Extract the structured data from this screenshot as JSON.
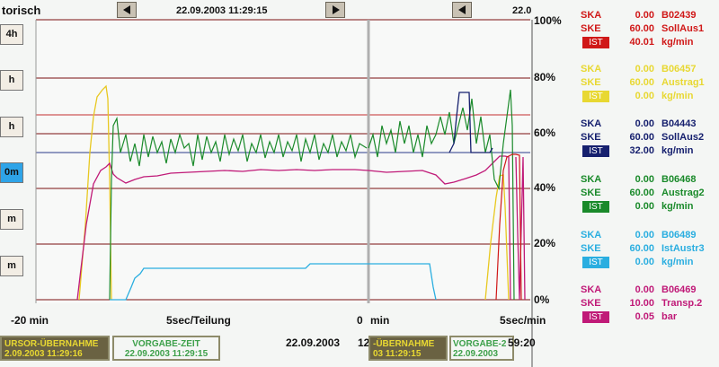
{
  "window": {
    "title": "torisch"
  },
  "nav": {
    "left_time": "22.09.2003  11:29:15",
    "right_time": "22.0"
  },
  "zoom_buttons": [
    "4h",
    "h",
    "h",
    "0m",
    "m",
    "m"
  ],
  "zoom_active_index": 3,
  "y_axis": [
    "100%",
    "80%",
    "60%",
    "40%",
    "20%",
    "0%"
  ],
  "x_axis": {
    "left_start": "-20 min",
    "left_mid": "5sec/Teilung",
    "left_end": "0",
    "right_start": "min",
    "right_end": "5sec/min"
  },
  "footer": {
    "cursor_label": "URSOR-ÜBERNAHME",
    "cursor_time": "2.09.2003 11:29:16",
    "preset_label": "VORGABE-ZEIT",
    "preset_time": "22.09.2003 11:29:15",
    "date": "22.09.2003",
    "date_tail": "12",
    "r_cursor_label": "-ÜBERNAHME",
    "r_cursor_time": "03 11:29:15",
    "r_preset_label": "VORGABE-2",
    "r_preset_time": "22.09.2003",
    "r_time_tail": "59:20"
  },
  "legend": [
    {
      "color": "#d01818",
      "ska": "SKA",
      "ske": "SKE",
      "ist": "IST",
      "ska_val": "0.00",
      "ske_val": "60.00",
      "ist_val": "40.01",
      "tag": "B02439",
      "name": "SollAus1",
      "unit": "kg/min"
    },
    {
      "color": "#e8d832",
      "ska": "SKA",
      "ske": "SKE",
      "ist": "IST",
      "ska_val": "0.00",
      "ske_val": "60.00",
      "ist_val": "0.00",
      "tag": "B06457",
      "name": "Austrag1",
      "unit": "kg/min"
    },
    {
      "color": "#16206e",
      "ska": "SKA",
      "ske": "SKE",
      "ist": "IST",
      "ska_val": "0.00",
      "ske_val": "60.00",
      "ist_val": "32.00",
      "tag": "B04443",
      "name": "SollAus2",
      "unit": "kg/min"
    },
    {
      "color": "#1a8a2a",
      "ska": "SKA",
      "ske": "SKE",
      "ist": "IST",
      "ska_val": "0.00",
      "ske_val": "60.00",
      "ist_val": "0.00",
      "tag": "B06468",
      "name": "Austrag2",
      "unit": "kg/min"
    },
    {
      "color": "#2aaee0",
      "ska": "SKA",
      "ske": "SKE",
      "ist": "IST",
      "ska_val": "0.00",
      "ske_val": "60.00",
      "ist_val": "0.00",
      "tag": "B06489",
      "name": "IstAustr3",
      "unit": "kg/min"
    },
    {
      "color": "#c01a78",
      "ska": "SKA",
      "ske": "SKE",
      "ist": "IST",
      "ska_val": "0.00",
      "ske_val": "10.00",
      "ist_val": "0.05",
      "tag": "B06469",
      "name": "Transp.2",
      "unit": "bar"
    }
  ],
  "colors": {
    "grid": "#7a1010",
    "sep": "#999999"
  }
}
